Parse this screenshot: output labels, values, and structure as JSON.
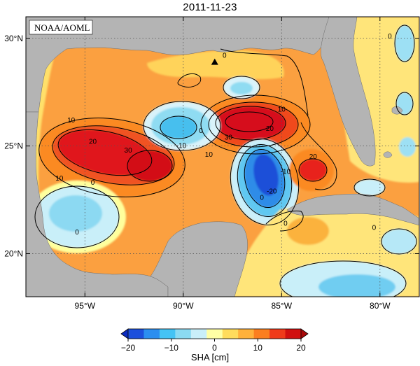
{
  "title": "2011-11-23",
  "credit": "NOAA/AOML",
  "map": {
    "lon_range": [
      -98,
      -78
    ],
    "lat_range": [
      18,
      31
    ],
    "lon_ticks": [
      {
        "value": -95,
        "label": "95°W"
      },
      {
        "value": -90,
        "label": "90°W"
      },
      {
        "value": -85,
        "label": "85°W"
      },
      {
        "value": -80,
        "label": "80°W"
      }
    ],
    "lat_ticks": [
      {
        "value": 20,
        "label": "20°N"
      },
      {
        "value": 25,
        "label": "25°N"
      },
      {
        "value": 30,
        "label": "30°N"
      }
    ],
    "gridlines": true,
    "land_color": "#b4b4b4",
    "background_color": "#fba040",
    "marker": {
      "type": "triangle",
      "lon": -88.4,
      "lat": 28.9
    }
  },
  "features": [
    {
      "name": "western-warm-eddy",
      "lon": -93.8,
      "lat": 24.8,
      "value": 30
    },
    {
      "name": "loop-current-warm-core",
      "lon": -86.8,
      "lat": 26.4,
      "value": 30
    },
    {
      "name": "central-cold-eddy",
      "lon": -85.7,
      "lat": 24.0,
      "value": -20
    },
    {
      "name": "eastern-warm-eddy",
      "lon": -83.6,
      "lat": 24.0,
      "value": 20
    },
    {
      "name": "northern-cold-eddy",
      "lon": -87.8,
      "lat": 28.3,
      "value": -5
    },
    {
      "name": "bay-of-campeche-cold-eddy",
      "lon": -95.5,
      "lat": 21.5,
      "value": -8
    },
    {
      "name": "caribbean-cold-region",
      "lon": -81.2,
      "lat": 19.4,
      "value": -8
    },
    {
      "name": "yucatan-cold-eddy",
      "lon": -90.6,
      "lat": 26.0,
      "value": -10
    }
  ],
  "contour_labels": [
    {
      "text": "0",
      "lon": -87.9,
      "lat": 29.1
    },
    {
      "text": "0",
      "lon": -79.5,
      "lat": 30.0
    },
    {
      "text": "10",
      "lon": -95.7,
      "lat": 26.1
    },
    {
      "text": "20",
      "lon": -94.6,
      "lat": 25.1
    },
    {
      "text": "30",
      "lon": -92.8,
      "lat": 24.7
    },
    {
      "text": "10",
      "lon": -96.3,
      "lat": 23.4
    },
    {
      "text": "0",
      "lon": -94.6,
      "lat": 23.2
    },
    {
      "text": "0",
      "lon": -95.4,
      "lat": 20.9
    },
    {
      "text": "-10",
      "lon": -90.1,
      "lat": 24.9
    },
    {
      "text": "0",
      "lon": -89.1,
      "lat": 25.6
    },
    {
      "text": "10",
      "lon": -88.7,
      "lat": 24.5
    },
    {
      "text": "30",
      "lon": -87.7,
      "lat": 25.3
    },
    {
      "text": "20",
      "lon": -85.6,
      "lat": 25.7
    },
    {
      "text": "10",
      "lon": -85.0,
      "lat": 26.6
    },
    {
      "text": "0",
      "lon": -86.0,
      "lat": 22.5
    },
    {
      "text": "-10",
      "lon": -84.8,
      "lat": 23.7
    },
    {
      "text": "-20",
      "lon": -85.5,
      "lat": 22.8
    },
    {
      "text": "20",
      "lon": -83.4,
      "lat": 24.4
    },
    {
      "text": "0",
      "lon": -84.8,
      "lat": 21.3
    },
    {
      "text": "0",
      "lon": -80.3,
      "lat": 21.1
    }
  ],
  "colorbar": {
    "label": "SHA [cm]",
    "min": -20,
    "max": 20,
    "ticks": [
      "-20",
      "-10",
      "0",
      "10",
      "20"
    ],
    "colors": [
      "#1c4fdc",
      "#2b8ef0",
      "#44c3f4",
      "#8bdaf2",
      "#c9eff9",
      "#ffffa5",
      "#ffdc5c",
      "#ffb13a",
      "#fb7e1f",
      "#ef3a1a",
      "#d10f0f"
    ]
  }
}
